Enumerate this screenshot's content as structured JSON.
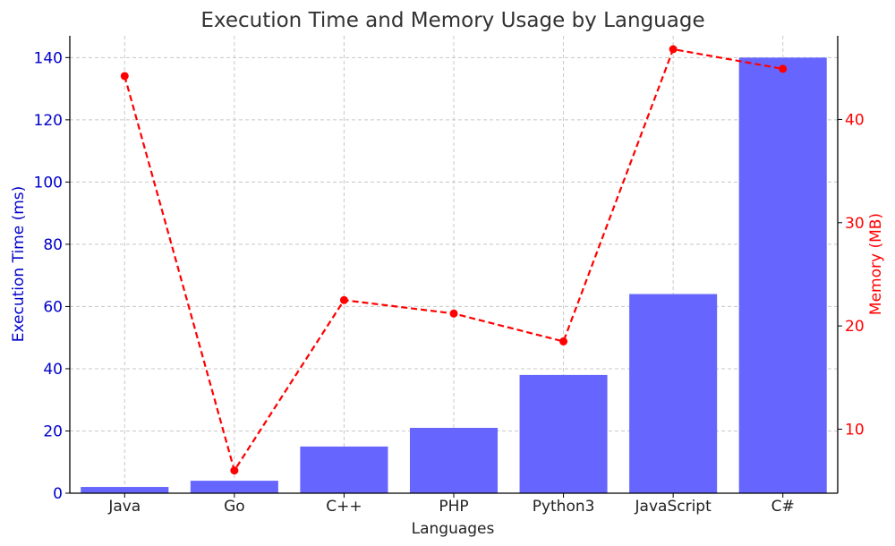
{
  "chart_data": {
    "type": "bar",
    "title": "Execution Time and Memory Usage by Language",
    "xlabel": "Languages",
    "ylabel_left": "Execution Time (ms)",
    "ylabel_right": "Memory (MB)",
    "categories": [
      "Java",
      "Go",
      "C++",
      "PHP",
      "Python3",
      "JavaScript",
      "C#"
    ],
    "series": [
      {
        "name": "Execution Time (ms)",
        "type": "bar",
        "axis": "left",
        "color": "#6666ff",
        "values": [
          2,
          4,
          15,
          21,
          38,
          64,
          140
        ]
      },
      {
        "name": "Memory (MB)",
        "type": "line",
        "axis": "right",
        "color": "#ff0000",
        "line_style": "dashed",
        "values": [
          44.2,
          6.0,
          22.5,
          21.2,
          18.5,
          46.8,
          44.9
        ]
      }
    ],
    "ylim_left": [
      0,
      147
    ],
    "yticks_left": [
      0,
      20,
      40,
      60,
      80,
      100,
      120,
      140
    ],
    "ylim_right": [
      3.8,
      48.1
    ],
    "yticks_right": [
      10,
      20,
      30,
      40
    ],
    "grid": true
  }
}
